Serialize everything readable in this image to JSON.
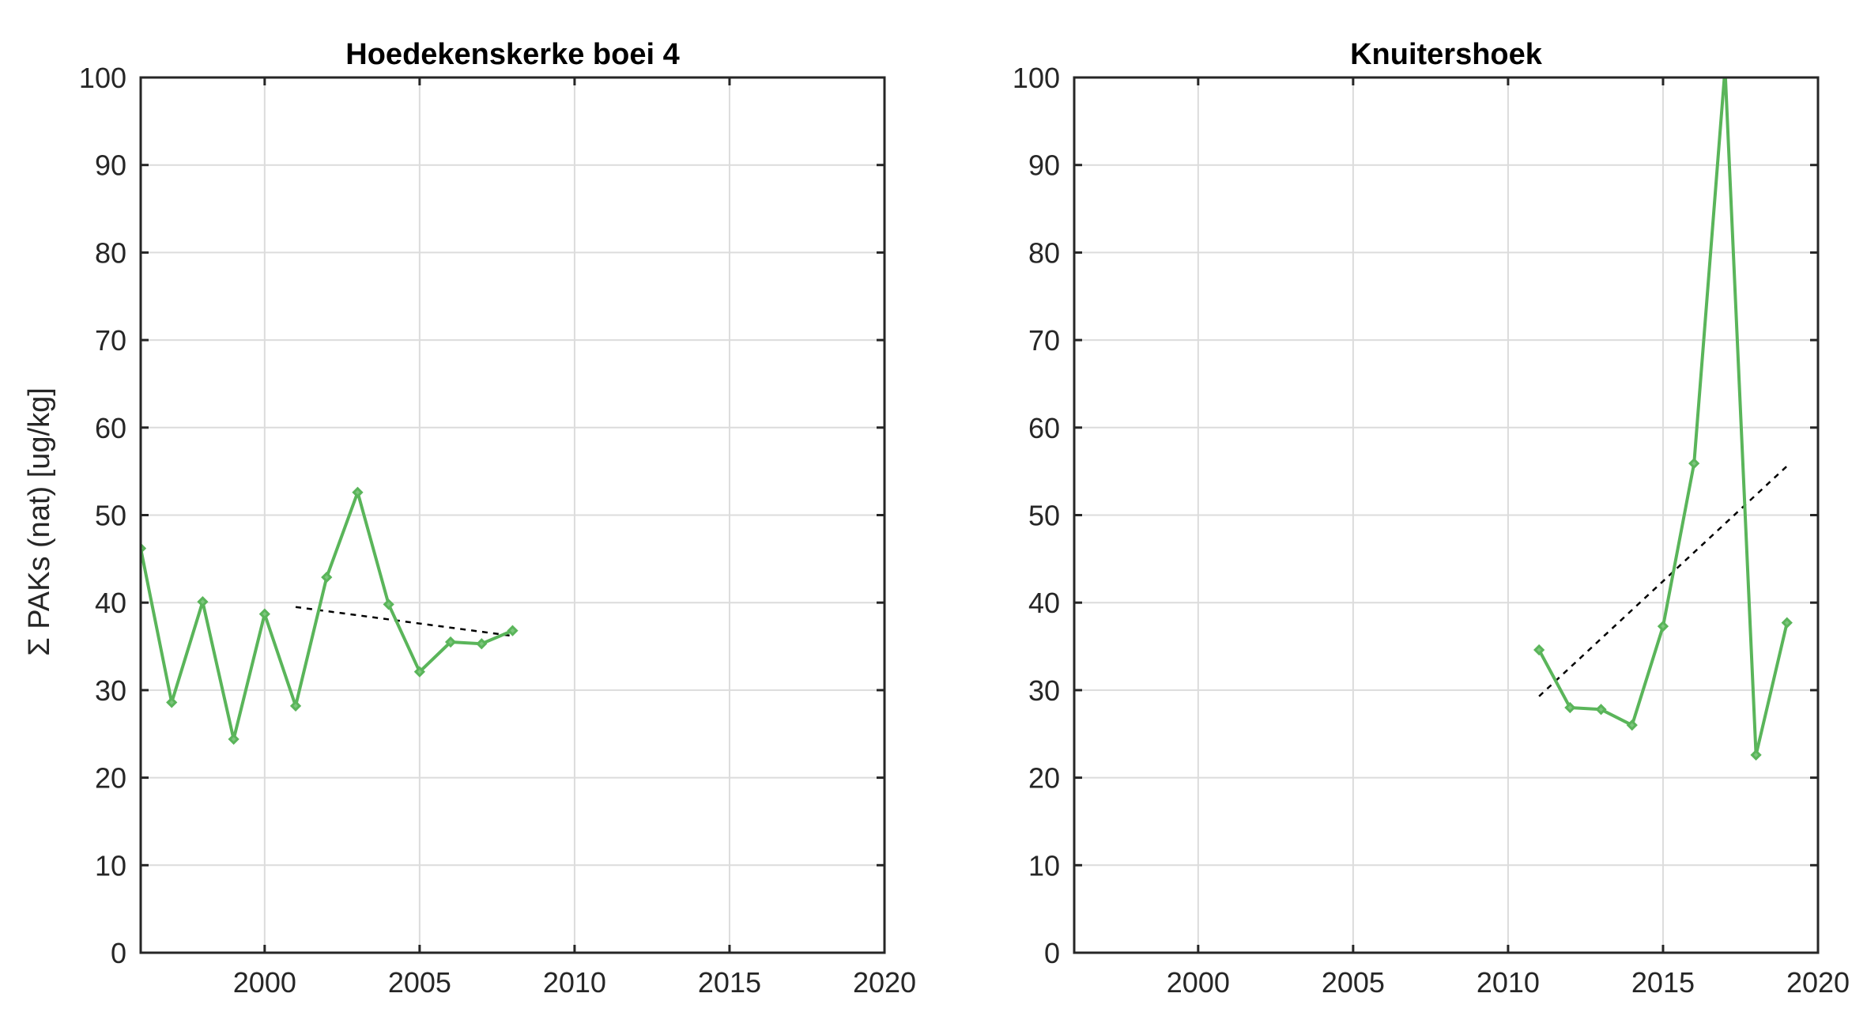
{
  "colors": {
    "series": "#5ab55a",
    "trend": "#000000"
  },
  "ylabel": "Σ PAKs (nat) [ug/kg]",
  "chart_data": [
    {
      "type": "line",
      "title": "Hoedekenskerke boei 4",
      "xlabel": "",
      "ylabel": "Σ PAKs (nat) [ug/kg]",
      "xlim": [
        1996,
        2020
      ],
      "ylim": [
        0,
        100
      ],
      "xticks": [
        2000,
        2005,
        2010,
        2015,
        2020
      ],
      "yticks": [
        0,
        10,
        20,
        30,
        40,
        50,
        60,
        70,
        80,
        90,
        100
      ],
      "grid": true,
      "x": [
        1996,
        1997,
        1998,
        1999,
        2000,
        2001,
        2002,
        2003,
        2004,
        2005,
        2006,
        2007,
        2008
      ],
      "y": [
        46.2,
        28.6,
        40.1,
        24.4,
        38.7,
        28.2,
        42.9,
        52.6,
        39.8,
        32.1,
        35.5,
        35.3,
        36.8
      ],
      "trend": {
        "x": [
          2001,
          2008
        ],
        "y": [
          39.5,
          36.2
        ]
      }
    },
    {
      "type": "line",
      "title": "Knuitershoek",
      "xlabel": "",
      "ylabel": "",
      "xlim": [
        1996,
        2020
      ],
      "ylim": [
        0,
        100
      ],
      "xticks": [
        2000,
        2005,
        2010,
        2015,
        2020
      ],
      "yticks": [
        0,
        10,
        20,
        30,
        40,
        50,
        60,
        70,
        80,
        90,
        100
      ],
      "grid": true,
      "x": [
        2011,
        2012,
        2013,
        2014,
        2015,
        2016,
        2017,
        2018,
        2019
      ],
      "y": [
        34.6,
        28.0,
        27.8,
        26.0,
        37.3,
        55.9,
        101.0,
        22.6,
        37.7
      ],
      "trend": {
        "x": [
          2011,
          2019
        ],
        "y": [
          29.3,
          55.6
        ]
      }
    }
  ]
}
